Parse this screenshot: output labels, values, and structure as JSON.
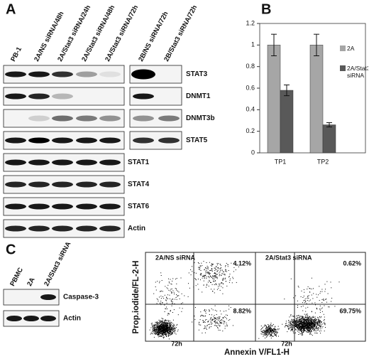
{
  "panel_a": {
    "label": "A",
    "lanes": [
      "PB-1",
      "2A/NS siRNA/48h",
      "2A/Stat3 siRNA/24h",
      "2A/Stat3 siRNA/48h",
      "2A/Stat3 siRNA/72h",
      "2B/NS siRNA/72h",
      "2B/Stat3 siRNA/72h"
    ],
    "proteins": [
      "STAT3",
      "DNMT1",
      "DNMT3b",
      "STAT5",
      "STAT1",
      "STAT4",
      "STAT6",
      "Actin"
    ]
  },
  "chart_data": {
    "type": "bar",
    "panel_label": "B",
    "categories": [
      "TP1",
      "TP2"
    ],
    "series": [
      {
        "name": "2A",
        "color": "#a6a6a6",
        "values": [
          1,
          1
        ],
        "errors": [
          0.1,
          0.1
        ]
      },
      {
        "name": "2A/Stat3 siRNA",
        "color": "#595959",
        "values": [
          0.58,
          0.26
        ],
        "errors": [
          0.05,
          0.02
        ]
      }
    ],
    "ylim": [
      0,
      1.2
    ],
    "yticks": [
      0,
      0.2,
      0.4,
      0.6,
      0.8,
      1,
      1.2
    ],
    "legend": "right"
  },
  "panel_c": {
    "label": "C",
    "lanes": [
      "PBMC",
      "2A",
      "2A/Stat3 siRNA"
    ],
    "proteins": [
      "Caspase-3",
      "Actin"
    ],
    "flow": {
      "y_label": "Prop.iodide/FL-2-H",
      "x_label": "Annexin V/FL1-H",
      "plots": [
        {
          "title": "2A/NS siRNA",
          "upper_right": "4.12%",
          "lower_right": "8.82%",
          "time": "72h"
        },
        {
          "title": "2A/Stat3 siRNA",
          "upper_right": "0.62%",
          "lower_right": "69.75%",
          "time": "72h"
        }
      ]
    }
  }
}
